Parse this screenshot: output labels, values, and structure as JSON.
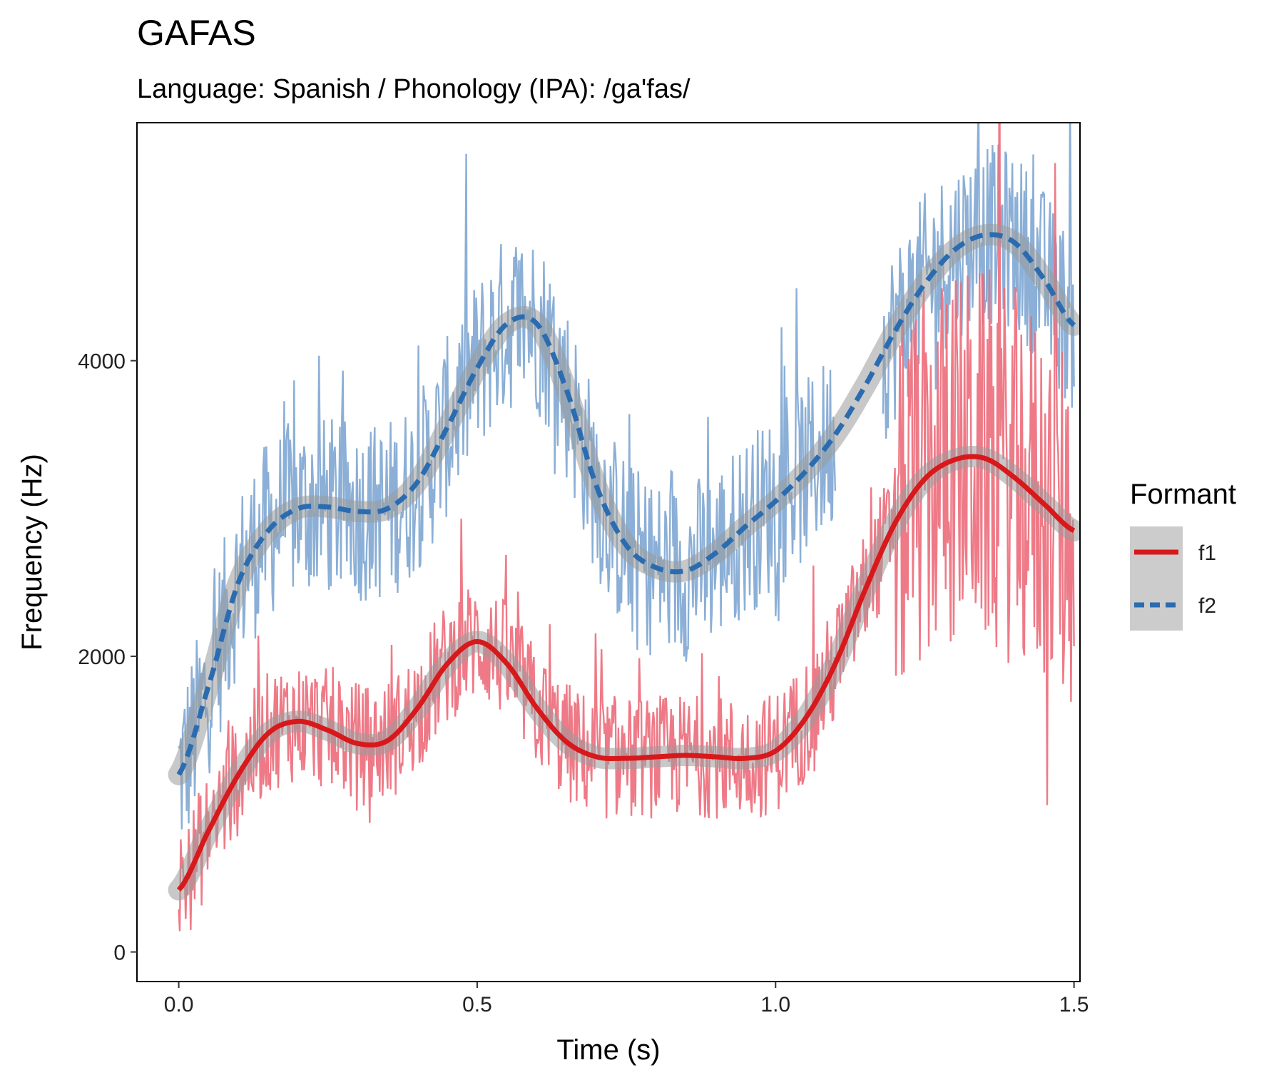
{
  "chart_data": {
    "type": "line",
    "title": "GAFAS",
    "subtitle": "Language: Spanish / Phonology (IPA): /ga'fas/",
    "xlabel": "Time (s)",
    "ylabel": "Frequency (Hz)",
    "xlim": [
      -0.07,
      1.51
    ],
    "ylim": [
      -200,
      5610
    ],
    "xticks": [
      0.0,
      0.5,
      1.0,
      1.5
    ],
    "xtick_labels": [
      "0.0",
      "0.5",
      "1.0",
      "1.5"
    ],
    "yticks": [
      0,
      2000,
      4000
    ],
    "ytick_labels": [
      "0",
      "2000",
      "4000"
    ],
    "grid": false,
    "legend": {
      "title": "Formant",
      "position": "right"
    },
    "series": [
      {
        "name": "f1",
        "color": "#d7191c",
        "raw_color": "#ec6b7a",
        "dash": "solid",
        "raw_x_range": [
          0.0,
          1.5
        ],
        "smooth_x": [
          0.0,
          0.05,
          0.1,
          0.15,
          0.2,
          0.25,
          0.3,
          0.35,
          0.4,
          0.45,
          0.5,
          0.55,
          0.6,
          0.65,
          0.7,
          0.75,
          0.8,
          0.85,
          0.9,
          0.95,
          1.0,
          1.05,
          1.1,
          1.15,
          1.2,
          1.25,
          1.3,
          1.35,
          1.4,
          1.45,
          1.5
        ],
        "smooth_y": [
          420,
          820,
          1200,
          1480,
          1560,
          1500,
          1410,
          1430,
          1650,
          1950,
          2100,
          1950,
          1650,
          1420,
          1320,
          1310,
          1320,
          1330,
          1320,
          1310,
          1360,
          1580,
          1950,
          2450,
          2900,
          3200,
          3330,
          3340,
          3210,
          3030,
          2850
        ]
      },
      {
        "name": "f2",
        "color": "#2b6cb0",
        "raw_color": "#7ea6d2",
        "dash": "dashed",
        "raw_x_range": [
          0.0,
          1.1
        ],
        "raw_x_range_2": [
          1.18,
          1.5
        ],
        "smooth_x": [
          0.0,
          0.05,
          0.1,
          0.15,
          0.2,
          0.25,
          0.3,
          0.35,
          0.4,
          0.45,
          0.5,
          0.55,
          0.6,
          0.65,
          0.7,
          0.75,
          0.8,
          0.85,
          0.9,
          0.95,
          1.0,
          1.05,
          1.1,
          1.15,
          1.2,
          1.25,
          1.3,
          1.35,
          1.4,
          1.45,
          1.5
        ],
        "smooth_y": [
          1200,
          1800,
          2500,
          2850,
          3000,
          3010,
          2980,
          3000,
          3180,
          3550,
          3950,
          4250,
          4250,
          3800,
          3150,
          2750,
          2600,
          2580,
          2700,
          2880,
          3050,
          3250,
          3500,
          3830,
          4200,
          4520,
          4750,
          4850,
          4800,
          4550,
          4240
        ]
      }
    ]
  }
}
